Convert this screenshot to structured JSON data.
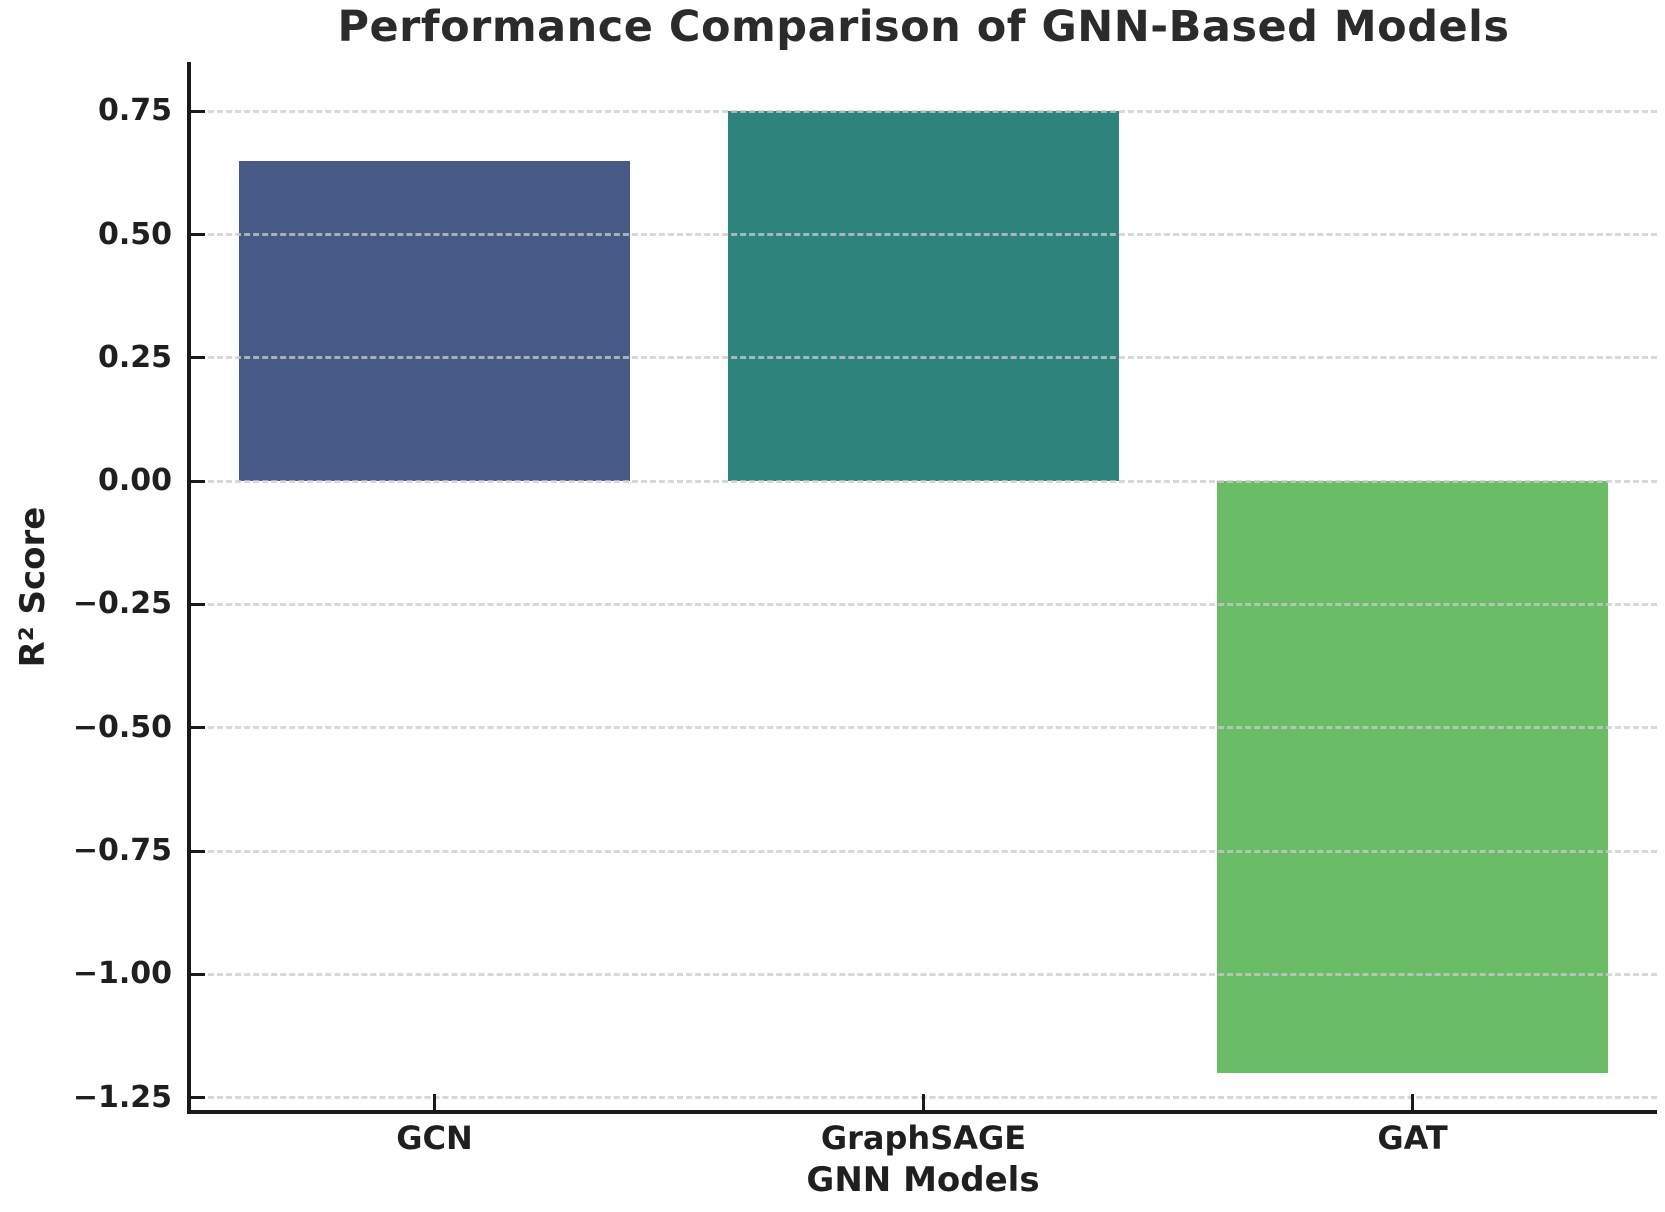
{
  "figure": {
    "background": "#ffffff"
  },
  "chart_data": {
    "type": "bar",
    "title": "Performance Comparison of GNN-Based Models",
    "xlabel": "GNN Models",
    "ylabel": "R² Score",
    "categories": [
      "GCN",
      "GraphSAGE",
      "GAT"
    ],
    "values": [
      0.65,
      0.75,
      -1.2
    ],
    "bar_colors": [
      "#475A86",
      "#2E847C",
      "#6ABC66"
    ],
    "ylim": [
      -1.275,
      0.85
    ],
    "yticks": [
      0.75,
      0.5,
      0.25,
      0,
      -0.25,
      -0.5,
      -0.75,
      -1,
      -1.25
    ],
    "ytick_labels": [
      "0.75",
      "0.50",
      "0.25",
      "0.00",
      "−0.25",
      "−0.50",
      "−0.75",
      "−1.00",
      "−1.25"
    ],
    "grid": "horizontal-dashed",
    "legend_position": "none",
    "bar_width_fraction": 0.8
  },
  "colors": {
    "text": "#1f1f1f",
    "title": "#2b2b2b",
    "spine": "#1a1a1a",
    "grid": "#cccccc",
    "background": "#ffffff"
  }
}
